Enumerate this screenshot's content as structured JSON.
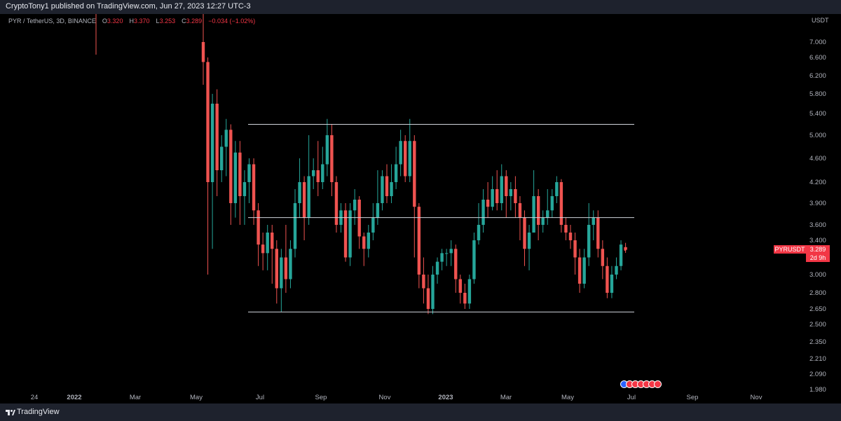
{
  "header": {
    "published_text": "CryptoTony1 published on TradingView.com, Jun 27, 2023 12:27 UTC-3"
  },
  "legend": {
    "symbol": "PYR / TetherUS, 3D, BINANCE",
    "open_label": "O",
    "open": "3.320",
    "high_label": "H",
    "high": "3.370",
    "low_label": "L",
    "low": "3.253",
    "close_label": "C",
    "close": "3.289",
    "change": "−0.034 (−1.02%)"
  },
  "currency": "USDT",
  "price_axis": {
    "ticks": [
      "7.000",
      "6.600",
      "6.200",
      "5.800",
      "5.400",
      "5.000",
      "4.600",
      "4.200",
      "3.900",
      "3.600",
      "3.400",
      "3.000",
      "2.800",
      "2.650",
      "2.500",
      "2.350",
      "2.210",
      "2.090",
      "1.980"
    ]
  },
  "time_axis": {
    "ticks": [
      {
        "label": "24",
        "bold": false
      },
      {
        "label": "2022",
        "bold": true
      },
      {
        "label": "Mar",
        "bold": false
      },
      {
        "label": "May",
        "bold": false
      },
      {
        "label": "Jul",
        "bold": false
      },
      {
        "label": "Sep",
        "bold": false
      },
      {
        "label": "Nov",
        "bold": false
      },
      {
        "label": "2023",
        "bold": true
      },
      {
        "label": "Mar",
        "bold": false
      },
      {
        "label": "May",
        "bold": false
      },
      {
        "label": "Jul",
        "bold": false
      },
      {
        "label": "Sep",
        "bold": false
      },
      {
        "label": "Nov",
        "bold": false
      }
    ]
  },
  "current_price": {
    "symbol": "PYRUSDT",
    "price": "3.289",
    "countdown": "2d 9h"
  },
  "footer": {
    "brand": "TradingView"
  },
  "levels": [
    5.2,
    3.7,
    2.62
  ],
  "colors": {
    "up": "#26a69a",
    "down": "#ef5350",
    "level": "#d1d4dc"
  },
  "chart_data": {
    "type": "candlestick",
    "symbol": "PYR / TetherUS",
    "interval": "3D",
    "ylim": [
      1.98,
      7.6
    ],
    "horizontal_levels": [
      5.2,
      3.7,
      2.62
    ],
    "candles": [
      [
        7.0,
        6.5,
        7.8,
        6.0
      ],
      [
        6.5,
        4.2,
        6.6,
        3.0
      ],
      [
        4.2,
        5.6,
        5.8,
        3.3
      ],
      [
        5.6,
        4.4,
        5.9,
        4.0
      ],
      [
        4.4,
        4.8,
        5.0,
        4.2
      ],
      [
        4.8,
        5.1,
        5.3,
        4.3
      ],
      [
        5.1,
        3.9,
        5.2,
        3.6
      ],
      [
        3.9,
        4.7,
        4.9,
        3.7
      ],
      [
        4.7,
        4.0,
        4.9,
        3.6
      ],
      [
        4.0,
        4.2,
        4.4,
        3.6
      ],
      [
        4.2,
        4.5,
        4.6,
        3.9
      ],
      [
        4.5,
        3.8,
        4.6,
        3.6
      ],
      [
        3.8,
        3.35,
        3.9,
        3.1
      ],
      [
        3.35,
        3.25,
        3.5,
        3.05
      ],
      [
        3.25,
        3.5,
        3.6,
        3.05
      ],
      [
        3.5,
        3.3,
        3.6,
        2.9
      ],
      [
        3.3,
        2.85,
        3.4,
        2.7
      ],
      [
        2.85,
        3.2,
        3.3,
        2.62
      ],
      [
        3.2,
        2.95,
        3.6,
        2.8
      ],
      [
        2.95,
        3.3,
        3.4,
        2.85
      ],
      [
        3.3,
        3.9,
        4.1,
        3.2
      ],
      [
        3.9,
        4.2,
        4.6,
        3.7
      ],
      [
        4.2,
        3.7,
        4.3,
        3.4
      ],
      [
        3.7,
        4.3,
        5.0,
        3.6
      ],
      [
        4.3,
        4.4,
        4.6,
        4.1
      ],
      [
        4.4,
        4.2,
        4.9,
        4.0
      ],
      [
        4.2,
        4.5,
        4.8,
        4.1
      ],
      [
        4.5,
        5.0,
        5.3,
        4.3
      ],
      [
        5.0,
        4.2,
        5.2,
        4.0
      ],
      [
        4.2,
        3.6,
        4.3,
        3.5
      ],
      [
        3.6,
        3.8,
        3.9,
        3.5
      ],
      [
        3.8,
        3.2,
        3.9,
        3.15
      ],
      [
        3.2,
        3.8,
        3.9,
        3.1
      ],
      [
        3.8,
        3.95,
        4.1,
        3.6
      ],
      [
        3.95,
        3.45,
        4.0,
        3.3
      ],
      [
        3.45,
        3.3,
        3.5,
        3.1
      ],
      [
        3.3,
        3.5,
        3.6,
        3.2
      ],
      [
        3.5,
        3.7,
        3.9,
        3.4
      ],
      [
        3.7,
        3.9,
        4.4,
        3.6
      ],
      [
        3.9,
        4.3,
        4.4,
        3.8
      ],
      [
        4.3,
        4.0,
        4.5,
        3.9
      ],
      [
        4.0,
        4.2,
        4.5,
        3.9
      ],
      [
        4.2,
        4.5,
        4.8,
        4.1
      ],
      [
        4.5,
        4.9,
        5.1,
        4.3
      ],
      [
        4.9,
        4.3,
        5.0,
        4.2
      ],
      [
        4.3,
        4.9,
        5.3,
        4.2
      ],
      [
        4.9,
        3.85,
        5.0,
        3.2
      ],
      [
        3.85,
        3.0,
        3.9,
        2.85
      ],
      [
        3.0,
        2.85,
        3.2,
        2.7
      ],
      [
        2.85,
        2.65,
        3.0,
        2.6
      ],
      [
        2.65,
        3.0,
        3.1,
        2.6
      ],
      [
        3.0,
        3.15,
        3.2,
        2.9
      ],
      [
        3.15,
        3.25,
        3.3,
        3.05
      ],
      [
        3.25,
        3.25,
        3.3,
        3.1
      ],
      [
        3.25,
        3.3,
        3.4,
        3.1
      ],
      [
        3.3,
        2.95,
        3.35,
        2.8
      ],
      [
        2.95,
        2.8,
        3.0,
        2.7
      ],
      [
        2.8,
        2.7,
        2.9,
        2.65
      ],
      [
        2.7,
        2.95,
        3.0,
        2.65
      ],
      [
        2.95,
        3.4,
        3.5,
        2.9
      ],
      [
        3.4,
        3.6,
        3.9,
        3.35
      ],
      [
        3.6,
        3.95,
        4.1,
        3.5
      ],
      [
        3.95,
        3.85,
        4.2,
        3.7
      ],
      [
        3.85,
        4.1,
        4.3,
        3.8
      ],
      [
        4.1,
        3.9,
        4.4,
        3.8
      ],
      [
        3.9,
        4.3,
        4.5,
        3.8
      ],
      [
        4.3,
        4.0,
        4.4,
        3.7
      ],
      [
        4.0,
        4.1,
        4.2,
        3.8
      ],
      [
        4.1,
        3.9,
        4.3,
        3.7
      ],
      [
        3.9,
        3.7,
        4.0,
        3.4
      ],
      [
        3.7,
        3.3,
        3.8,
        3.1
      ],
      [
        3.3,
        3.5,
        3.6,
        3.05
      ],
      [
        3.5,
        4.0,
        4.4,
        3.5
      ],
      [
        4.0,
        3.6,
        4.1,
        3.4
      ],
      [
        3.6,
        3.7,
        3.8,
        3.5
      ],
      [
        3.7,
        3.8,
        4.1,
        3.6
      ],
      [
        3.8,
        4.0,
        4.1,
        3.7
      ],
      [
        4.0,
        4.2,
        4.3,
        3.9
      ],
      [
        4.2,
        3.6,
        4.25,
        3.5
      ],
      [
        3.6,
        3.5,
        3.7,
        3.4
      ],
      [
        3.5,
        3.4,
        3.6,
        3.3
      ],
      [
        3.4,
        3.2,
        3.5,
        3.0
      ],
      [
        3.2,
        2.9,
        3.3,
        2.8
      ],
      [
        2.9,
        3.2,
        3.3,
        2.85
      ],
      [
        3.2,
        3.6,
        3.9,
        3.1
      ],
      [
        3.6,
        3.7,
        3.8,
        3.4
      ],
      [
        3.7,
        3.3,
        3.8,
        3.2
      ],
      [
        3.3,
        3.1,
        3.4,
        2.95
      ],
      [
        3.1,
        2.8,
        3.2,
        2.75
      ],
      [
        2.8,
        3.0,
        3.1,
        2.75
      ],
      [
        3.0,
        3.1,
        3.2,
        2.95
      ],
      [
        3.1,
        3.35,
        3.4,
        3.05
      ],
      [
        3.32,
        3.289,
        3.37,
        3.253
      ]
    ]
  }
}
